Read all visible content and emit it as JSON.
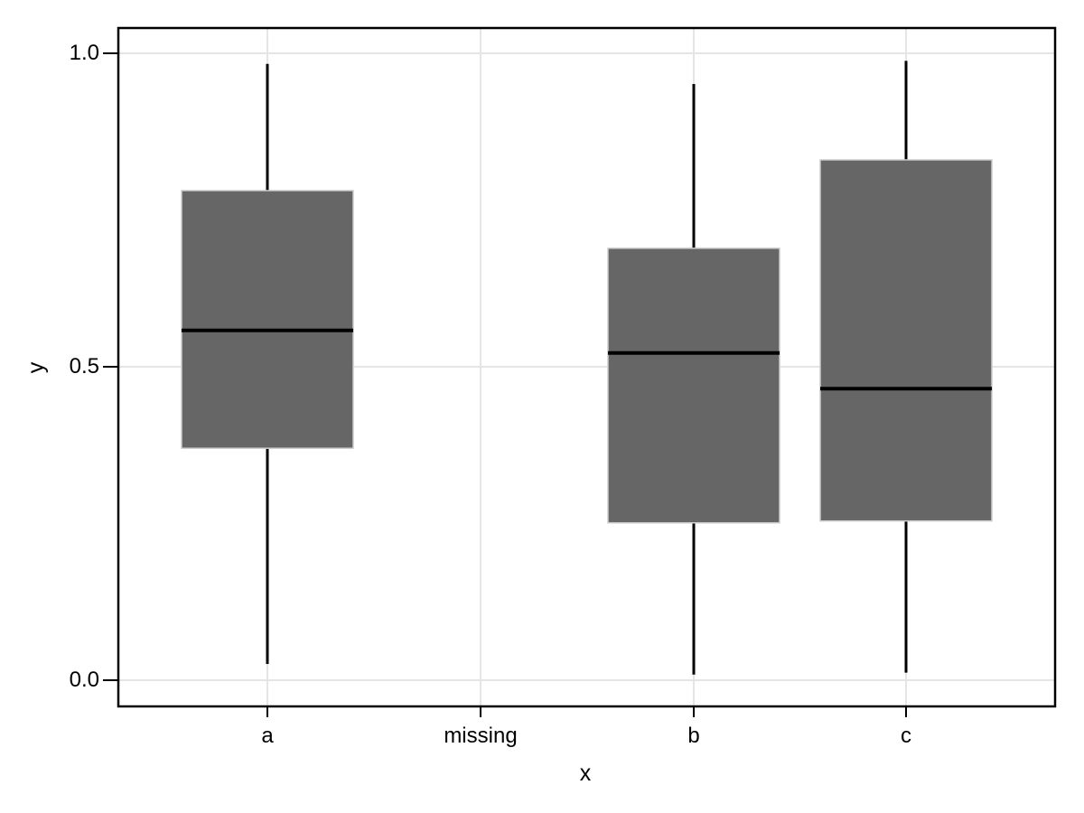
{
  "chart_data": {
    "type": "boxplot",
    "title": "",
    "xlabel": "x",
    "ylabel": "y",
    "categories": [
      "a",
      "missing",
      "b",
      "c"
    ],
    "y_tick_labels": [
      "1.0",
      "0.5",
      "0.0"
    ],
    "y_tick_values": [
      1.0,
      0.5,
      0.0
    ],
    "ylim": [
      -0.042,
      1.082
    ],
    "grid": "major gridlines only, light gray, horizontal at y ticks and vertical at each category",
    "legend": "none",
    "colors": {
      "box_fill": "#666666",
      "box_edge": "#cccccc",
      "whisker": "#000000",
      "median": "#000000",
      "grid": "#e5e5e5",
      "frame": "#000000",
      "text": "#000000"
    },
    "boxes": [
      {
        "category": "a",
        "whisker_low": 0.026,
        "q1": 0.37,
        "median": 0.558,
        "q3": 0.781,
        "whisker_high": 0.983
      },
      {
        "category": "missing",
        "whisker_low": null,
        "q1": null,
        "median": null,
        "q3": null,
        "whisker_high": null
      },
      {
        "category": "b",
        "whisker_low": 0.009,
        "q1": 0.251,
        "median": 0.522,
        "q3": 0.689,
        "whisker_high": 0.951
      },
      {
        "category": "c",
        "whisker_low": 0.012,
        "q1": 0.254,
        "median": 0.465,
        "q3": 0.83,
        "whisker_high": 0.988
      }
    ]
  }
}
